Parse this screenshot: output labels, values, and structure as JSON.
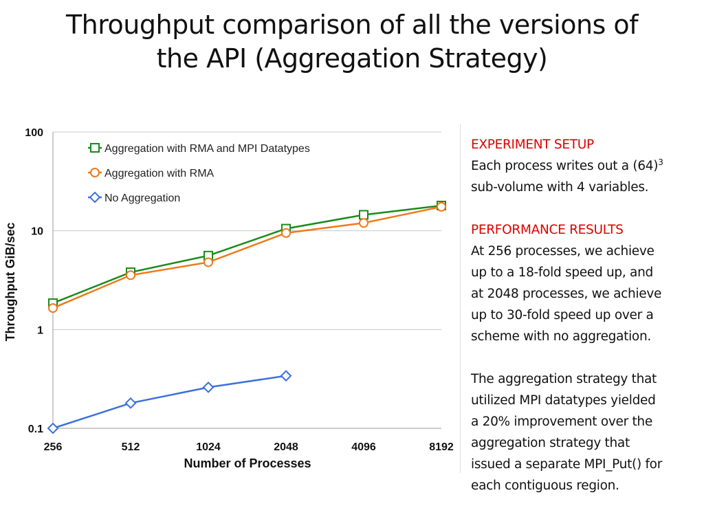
{
  "slide": {
    "title_line1": "Throughput comparison of all the versions of",
    "title_line2": "the API (Aggregation Strategy)"
  },
  "chart_data": {
    "type": "line",
    "xlabel": "Number of Processes",
    "ylabel": "Throughput GiB/sec",
    "yscale": "log",
    "ylim": [
      0.1,
      100
    ],
    "yticks": [
      0.1,
      1,
      10,
      100
    ],
    "ytick_labels": [
      "0.1",
      "1",
      "10",
      "100"
    ],
    "x": [
      256,
      512,
      1024,
      2048,
      4096,
      8192
    ],
    "x_labels": [
      "256",
      "512",
      "1024",
      "2048",
      "4096",
      "8192"
    ],
    "grid": true,
    "legend_position": "top-left",
    "series": [
      {
        "name": "Aggregation with RMA and MPI Datatypes",
        "color": "#1a8a1a",
        "marker": "square",
        "values": [
          1.85,
          3.8,
          5.6,
          10.5,
          14.5,
          18.0
        ]
      },
      {
        "name": "Aggregation with RMA",
        "color": "#f07818",
        "marker": "circle",
        "values": [
          1.65,
          3.55,
          4.8,
          9.5,
          12.0,
          17.5
        ]
      },
      {
        "name": "No Aggregation",
        "color": "#3c6fe0",
        "marker": "diamond",
        "values": [
          0.1,
          0.18,
          0.26,
          0.34,
          null,
          null
        ]
      }
    ]
  },
  "notes": {
    "setup_heading": "EXPERIMENT SETUP",
    "setup_text_1": "Each process writes out a (64)",
    "setup_text_sup": "3",
    "setup_text_2": "sub-volume with 4 variables.",
    "results_heading": "PERFORMANCE RESULTS",
    "results_lines": [
      "At 256 processes, we achieve",
      "up to a 18-fold speed up, and",
      "at 2048 processes, we achieve",
      "up to 30-fold speed up over a",
      "scheme with no aggregation."
    ],
    "conclusion_lines": [
      "The aggregation strategy that",
      "utilized MPI datatypes yielded",
      "a 20% improvement over the",
      "aggregation strategy that",
      "issued a separate MPI_Put() for",
      "each contiguous region."
    ]
  }
}
